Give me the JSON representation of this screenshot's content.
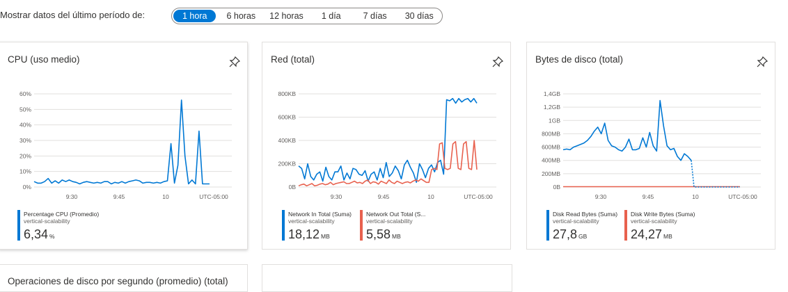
{
  "filter": {
    "label": "Mostrar datos del último período de:",
    "options": [
      "1 hora",
      "6 horas",
      "12 horas",
      "1 día",
      "7 días",
      "30 días"
    ],
    "selected": "1 hora"
  },
  "colors": {
    "blue": "#0078d4",
    "red": "#e8614e",
    "grid": "#e1dfdd"
  },
  "cards": [
    {
      "title": "CPU (uso medio)",
      "chart_data": {
        "type": "line",
        "ylim": [
          0,
          60
        ],
        "yticks": [
          "60%",
          "50%",
          "40%",
          "30%",
          "20%",
          "10%",
          "0%"
        ],
        "xticks": [
          "9:30",
          "9:45",
          "10",
          "UTC-05:00"
        ],
        "series": [
          {
            "name": "Percentage CPU (Promedio)",
            "color": "#0078d4",
            "values": [
              3.5,
              2.5,
              2.5,
              3.5,
              5.5,
              2.5,
              4,
              2.5,
              4.5,
              3.5,
              4.5,
              3.5,
              3,
              2,
              3,
              3.5,
              3,
              2.5,
              3,
              2.5,
              3.5,
              3.5,
              2,
              3,
              2.5,
              3.5,
              2.5,
              3.5,
              4,
              4.5,
              4,
              2.5,
              3,
              3,
              2.5,
              3,
              2.5,
              3.5,
              4,
              28,
              2.5,
              14,
              56,
              20,
              2,
              4.5,
              2,
              36,
              2,
              2,
              2
            ]
          }
        ]
      },
      "legend": [
        {
          "name": "Percentage CPU (Promedio)",
          "resource": "vertical-scalability",
          "value": "6,34",
          "unit": "%",
          "color": "#0078d4"
        }
      ]
    },
    {
      "title": "Red (total)",
      "chart_data": {
        "type": "line",
        "ylim": [
          0,
          800
        ],
        "yticks": [
          "800KB",
          "600KB",
          "400KB",
          "200KB",
          "0B"
        ],
        "xticks": [
          "9:30",
          "9:45",
          "10",
          "UTC-05:00"
        ],
        "series": [
          {
            "name": "Network In Total (Suma)",
            "color": "#0078d4",
            "values": [
              180,
              160,
              70,
              200,
              90,
              60,
              110,
              130,
              50,
              170,
              90,
              60,
              130,
              130,
              180,
              60,
              120,
              70,
              160,
              150,
              110,
              100,
              140,
              50,
              110,
              130,
              60,
              160,
              80,
              210,
              90,
              120,
              180,
              140,
              70,
              190,
              230,
              170,
              120,
              40,
              200,
              150,
              80,
              160,
              190,
              130,
              210,
              230,
              110,
              750,
              740,
              760,
              720,
              760,
              730,
              750,
              760,
              730,
              760,
              720
            ]
          },
          {
            "name": "Network Out Total (Suma)",
            "color": "#e8614e",
            "values": [
              10,
              20,
              25,
              10,
              20,
              30,
              10,
              15,
              25,
              30,
              20,
              25,
              40,
              20,
              30,
              35,
              40,
              45,
              30,
              30,
              40,
              50,
              35,
              40,
              30,
              50,
              60,
              30,
              45,
              40,
              25,
              50,
              40,
              30,
              60,
              40,
              30,
              50,
              40,
              30,
              40,
              45,
              35,
              50,
              60,
              50,
              70,
              55,
              40,
              40,
              150,
              160,
              150,
              370,
              380,
              160,
              150,
              160,
              370,
              390,
              160,
              150,
              370,
              390,
              160,
              150,
              400,
              150
            ]
          }
        ]
      },
      "legend": [
        {
          "name": "Network In Total (Suma)",
          "resource": "vertical-scalability",
          "value": "18,12",
          "unit": "MB",
          "color": "#0078d4"
        },
        {
          "name": "Network Out Total (S...",
          "resource": "vertical-scalability",
          "value": "5,58",
          "unit": "MB",
          "color": "#e8614e"
        }
      ]
    },
    {
      "title": "Bytes de disco (total)",
      "chart_data": {
        "type": "line",
        "ylim": [
          0,
          1400
        ],
        "yticks": [
          "1,4GB",
          "1,2GB",
          "1GB",
          "800MB",
          "600MB",
          "400MB",
          "200MB",
          "0B"
        ],
        "xticks": [
          "9:30",
          "9:45",
          "10",
          "UTC-05:00"
        ],
        "series": [
          {
            "name": "Disk Read Bytes (Suma)",
            "color": "#0078d4",
            "values": [
              560,
              570,
              560,
              600,
              620,
              640,
              660,
              700,
              760,
              840,
              900,
              800,
              960,
              700,
              620,
              600,
              560,
              540,
              600,
              720,
              560,
              560,
              580,
              740,
              600,
              820,
              620,
              540,
              1300,
              920,
              620,
              560,
              580,
              460,
              400,
              500,
              460,
              400
            ]
          },
          {
            "name": "Disk Write Bytes (Suma)",
            "color": "#e8614e",
            "values": [
              5,
              5,
              5,
              5,
              5,
              5,
              5,
              5,
              5,
              5,
              5,
              5,
              5,
              5,
              5,
              5,
              5,
              5,
              5,
              5,
              5,
              5,
              5,
              5,
              5,
              5,
              5,
              5,
              5,
              5,
              5,
              5,
              5,
              5,
              5,
              5,
              5,
              5,
              5,
              5,
              5,
              5,
              5,
              5,
              5,
              5,
              5,
              5,
              5,
              5,
              5,
              5,
              5
            ]
          }
        ]
      },
      "legend": [
        {
          "name": "Disk Read Bytes (Suma)",
          "resource": "vertical-scalability",
          "value": "27,8",
          "unit": "GB",
          "color": "#0078d4"
        },
        {
          "name": "Disk Write Bytes (Suma)",
          "resource": "vertical-scalability",
          "value": "24,27",
          "unit": "MB",
          "color": "#e8614e"
        }
      ]
    }
  ],
  "row2": {
    "title": "Operaciones de disco por segundo (promedio) (total)"
  }
}
